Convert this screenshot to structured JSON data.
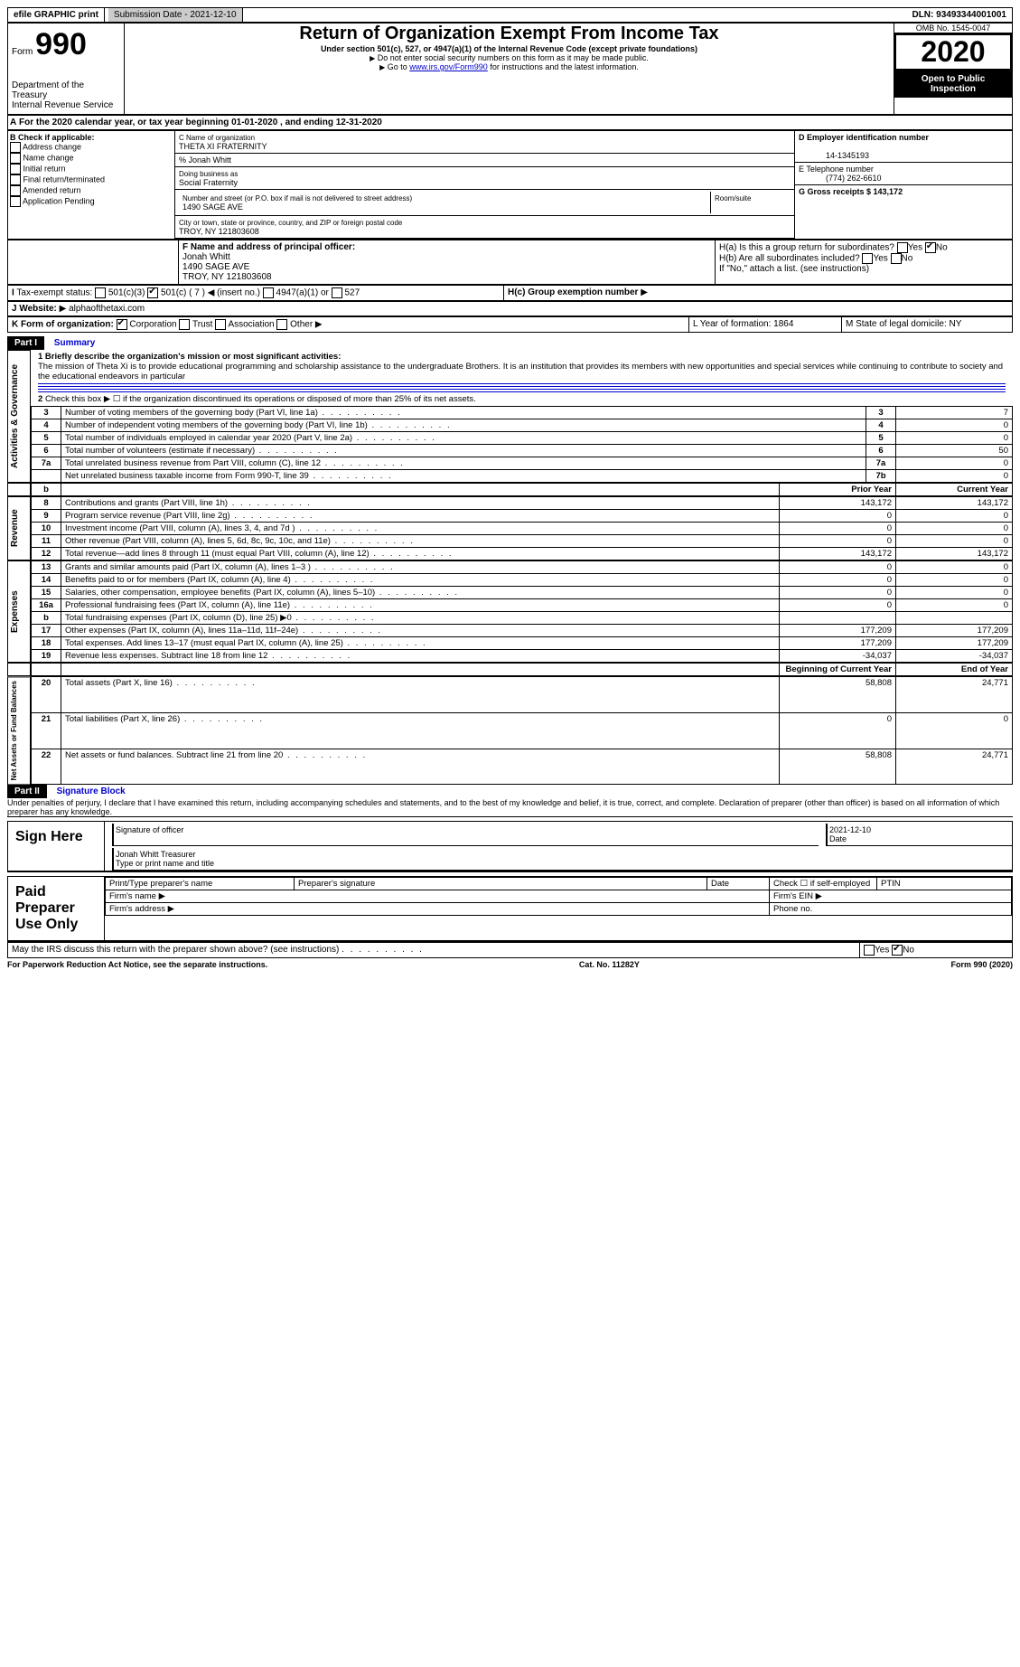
{
  "header": {
    "efile": "efile GRAPHIC print",
    "submission_date_label": "Submission Date - 2021-12-10",
    "dln_label": "DLN: 93493344001001"
  },
  "form_id": {
    "form": "Form",
    "number": "990",
    "dept": "Department of the Treasury",
    "irs": "Internal Revenue Service"
  },
  "title": {
    "main": "Return of Organization Exempt From Income Tax",
    "sub": "Under section 501(c), 527, or 4947(a)(1) of the Internal Revenue Code (except private foundations)",
    "note1": "Do not enter social security numbers on this form as it may be made public.",
    "note2_pre": "Go to ",
    "note2_link": "www.irs.gov/Form990",
    "note2_post": " for instructions and the latest information."
  },
  "right_header": {
    "omb": "OMB No. 1545-0047",
    "year": "2020",
    "open": "Open to Public Inspection"
  },
  "section_a": {
    "text": "For the 2020 calendar year, or tax year beginning 01-01-2020   , and ending 12-31-2020",
    "prefix": "A"
  },
  "section_b": {
    "label": "B Check if applicable:",
    "opts": [
      "Address change",
      "Name change",
      "Initial return",
      "Final return/terminated",
      "Amended return",
      "Application Pending"
    ]
  },
  "section_c": {
    "name_label": "C Name of organization",
    "name": "THETA XI FRATERNITY",
    "care_of": "% Jonah Whitt",
    "dba_label": "Doing business as",
    "dba": "Social Fraternity",
    "addr_label": "Number and street (or P.O. box if mail is not delivered to street address)",
    "room": "Room/suite",
    "addr": "1490 SAGE AVE",
    "city_label": "City or town, state or province, country, and ZIP or foreign postal code",
    "city": "TROY, NY  121803608"
  },
  "section_d": {
    "label": "D Employer identification number",
    "value": "14-1345193"
  },
  "section_e": {
    "label": "E Telephone number",
    "value": "(774) 262-6610"
  },
  "section_g": {
    "label": "G Gross receipts $ 143,172"
  },
  "section_f": {
    "label": "F  Name and address of principal officer:",
    "name": "Jonah Whitt",
    "addr1": "1490 SAGE AVE",
    "addr2": "TROY, NY  121803608"
  },
  "section_h": {
    "a_label": "H(a)  Is this a group return for subordinates?",
    "b_label": "H(b)  Are all subordinates included?",
    "note": "If \"No,\" attach a list. (see instructions)",
    "c_label": "H(c)  Group exemption number",
    "yes": "Yes",
    "no": "No"
  },
  "section_i": {
    "label": "Tax-exempt status:",
    "opts": [
      "501(c)(3)",
      "501(c) ( 7 )",
      "(insert no.)",
      "4947(a)(1) or",
      "527"
    ]
  },
  "section_j": {
    "label": "Website:",
    "value": "alphaofthetaxi.com"
  },
  "section_k": {
    "label": "K Form of organization:",
    "opts": [
      "Corporation",
      "Trust",
      "Association",
      "Other"
    ]
  },
  "section_l": {
    "label": "L Year of formation: 1864"
  },
  "section_m": {
    "label": "M State of legal domicile: NY"
  },
  "part1": {
    "header": "Part I",
    "title": "Summary",
    "line1_label": "1  Briefly describe the organization's mission or most significant activities:",
    "mission": "The mission of Theta Xi is to provide educational programming and scholarship assistance to the undergraduate Brothers. It is an institution that provides its members with new opportunities and special services while continuing to contribute to society and the educational endeavors in particular",
    "line2": "Check this box ▶ ☐  if the organization discontinued its operations or disposed of more than 25% of its net assets.",
    "sections": {
      "gov": "Activities & Governance",
      "rev": "Revenue",
      "exp": "Expenses",
      "net": "Net Assets or Fund Balances"
    },
    "col_headers": {
      "prior": "Prior Year",
      "current": "Current Year",
      "begin": "Beginning of Current Year",
      "end": "End of Year"
    },
    "rows_gov": [
      {
        "n": "3",
        "d": "Number of voting members of the governing body (Part VI, line 1a)",
        "r": "3",
        "v": "7"
      },
      {
        "n": "4",
        "d": "Number of independent voting members of the governing body (Part VI, line 1b)",
        "r": "4",
        "v": "0"
      },
      {
        "n": "5",
        "d": "Total number of individuals employed in calendar year 2020 (Part V, line 2a)",
        "r": "5",
        "v": "0"
      },
      {
        "n": "6",
        "d": "Total number of volunteers (estimate if necessary)",
        "r": "6",
        "v": "50"
      },
      {
        "n": "7a",
        "d": "Total unrelated business revenue from Part VIII, column (C), line 12",
        "r": "7a",
        "v": "0"
      },
      {
        "n": "",
        "d": "Net unrelated business taxable income from Form 990-T, line 39",
        "r": "7b",
        "v": "0"
      }
    ],
    "rows_rev": [
      {
        "n": "8",
        "d": "Contributions and grants (Part VIII, line 1h)",
        "p": "143,172",
        "c": "143,172"
      },
      {
        "n": "9",
        "d": "Program service revenue (Part VIII, line 2g)",
        "p": "0",
        "c": "0"
      },
      {
        "n": "10",
        "d": "Investment income (Part VIII, column (A), lines 3, 4, and 7d )",
        "p": "0",
        "c": "0"
      },
      {
        "n": "11",
        "d": "Other revenue (Part VIII, column (A), lines 5, 6d, 8c, 9c, 10c, and 11e)",
        "p": "0",
        "c": "0"
      },
      {
        "n": "12",
        "d": "Total revenue—add lines 8 through 11 (must equal Part VIII, column (A), line 12)",
        "p": "143,172",
        "c": "143,172"
      }
    ],
    "rows_exp": [
      {
        "n": "13",
        "d": "Grants and similar amounts paid (Part IX, column (A), lines 1–3 )",
        "p": "0",
        "c": "0"
      },
      {
        "n": "14",
        "d": "Benefits paid to or for members (Part IX, column (A), line 4)",
        "p": "0",
        "c": "0"
      },
      {
        "n": "15",
        "d": "Salaries, other compensation, employee benefits (Part IX, column (A), lines 5–10)",
        "p": "0",
        "c": "0"
      },
      {
        "n": "16a",
        "d": "Professional fundraising fees (Part IX, column (A), line 11e)",
        "p": "0",
        "c": "0"
      },
      {
        "n": "b",
        "d": "Total fundraising expenses (Part IX, column (D), line 25) ▶0",
        "p": "",
        "c": ""
      },
      {
        "n": "17",
        "d": "Other expenses (Part IX, column (A), lines 11a–11d, 11f–24e)",
        "p": "177,209",
        "c": "177,209"
      },
      {
        "n": "18",
        "d": "Total expenses. Add lines 13–17 (must equal Part IX, column (A), line 25)",
        "p": "177,209",
        "c": "177,209"
      },
      {
        "n": "19",
        "d": "Revenue less expenses. Subtract line 18 from line 12",
        "p": "-34,037",
        "c": "-34,037"
      }
    ],
    "rows_net": [
      {
        "n": "20",
        "d": "Total assets (Part X, line 16)",
        "p": "58,808",
        "c": "24,771"
      },
      {
        "n": "21",
        "d": "Total liabilities (Part X, line 26)",
        "p": "0",
        "c": "0"
      },
      {
        "n": "22",
        "d": "Net assets or fund balances. Subtract line 21 from line 20",
        "p": "58,808",
        "c": "24,771"
      }
    ]
  },
  "part2": {
    "header": "Part II",
    "title": "Signature Block",
    "declaration": "Under penalties of perjury, I declare that I have examined this return, including accompanying schedules and statements, and to the best of my knowledge and belief, it is true, correct, and complete. Declaration of preparer (other than officer) is based on all information of which preparer has any knowledge.",
    "sign_here": "Sign Here",
    "sig_officer": "Signature of officer",
    "sig_date": "2021-12-10",
    "date_label": "Date",
    "officer_name": "Jonah Whitt  Treasurer",
    "type_name": "Type or print name and title",
    "paid_prep": "Paid Preparer Use Only",
    "prep_name": "Print/Type preparer's name",
    "prep_sig": "Preparer's signature",
    "check_self": "Check ☐  if self-employed",
    "ptin": "PTIN",
    "firm_name": "Firm's name  ▶",
    "firm_ein": "Firm's EIN ▶",
    "firm_addr": "Firm's address ▶",
    "phone": "Phone no.",
    "discuss": "May the IRS discuss this return with the preparer shown above? (see instructions)"
  },
  "footer": {
    "pra": "For Paperwork Reduction Act Notice, see the separate instructions.",
    "cat": "Cat. No. 11282Y",
    "form": "Form 990 (2020)"
  }
}
